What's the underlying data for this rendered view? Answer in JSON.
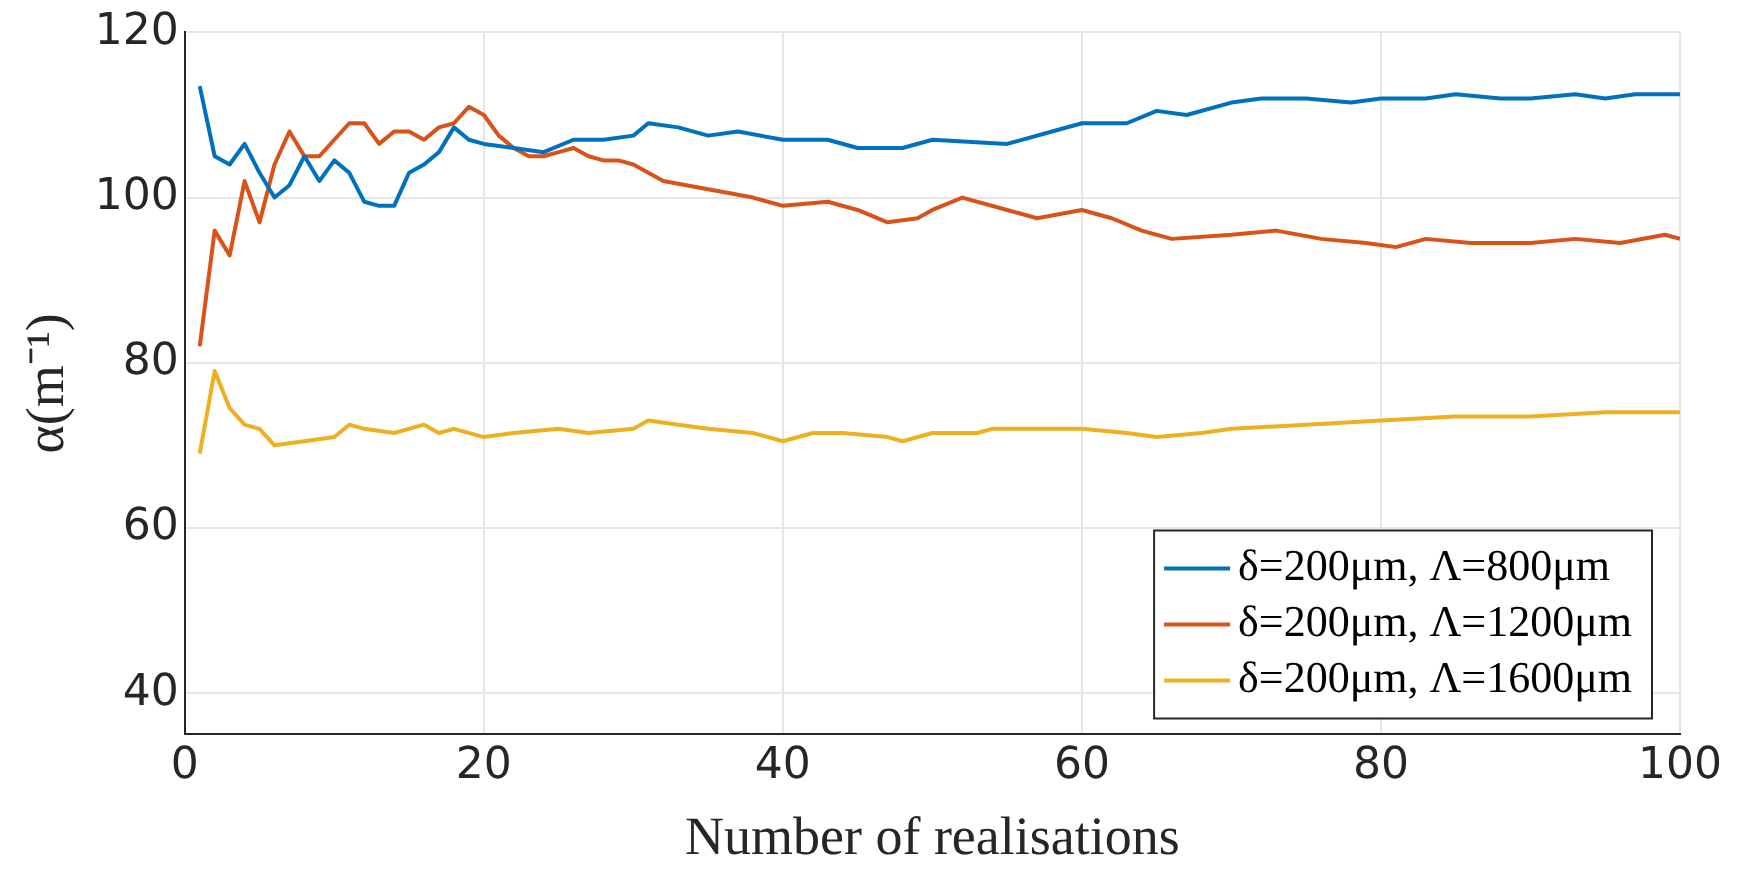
{
  "chart_data": {
    "type": "line",
    "xlabel": "Number of realisations",
    "ylabel": "α(m⁻¹)",
    "xlim": [
      0,
      100
    ],
    "xticks": [
      0,
      20,
      40,
      60,
      80,
      100
    ],
    "ylim": [
      35,
      120
    ],
    "yticks": [
      40,
      60,
      80,
      100,
      120
    ],
    "grid": true,
    "legend": "bottom right",
    "marker": "none",
    "line_style": "solid",
    "series": [
      {
        "name": "δ=200μm, Λ=800μm",
        "color": "#0072bd",
        "x": [
          1,
          2,
          3,
          4,
          5,
          6,
          7,
          8,
          9,
          10,
          11,
          12,
          13,
          14,
          15,
          16,
          17,
          18,
          19,
          20,
          22,
          24,
          26,
          28,
          30,
          31,
          33,
          35,
          37,
          40,
          43,
          45,
          48,
          50,
          55,
          58,
          60,
          63,
          65,
          67,
          70,
          72,
          75,
          78,
          80,
          83,
          85,
          88,
          90,
          93,
          95,
          97,
          100
        ],
        "values": [
          113.5,
          105,
          104,
          106.5,
          103,
          100,
          101.5,
          105,
          102,
          104.5,
          103,
          99.5,
          99,
          99,
          103,
          104,
          105.5,
          108.5,
          107,
          106.5,
          106,
          105.5,
          107,
          107,
          107.5,
          109,
          108.5,
          107.5,
          108,
          107,
          107,
          106,
          106,
          107,
          106.5,
          108,
          109,
          109,
          110.5,
          110,
          111.5,
          112,
          112,
          111.5,
          112,
          112,
          112.5,
          112,
          112,
          112.5,
          112,
          112.5,
          112.5
        ]
      },
      {
        "name": "δ=200μm, Λ=1200μm",
        "color": "#d95319",
        "x": [
          1,
          2,
          3,
          4,
          5,
          6,
          7,
          8,
          9,
          10,
          11,
          12,
          13,
          14,
          15,
          16,
          17,
          18,
          19,
          20,
          21,
          22,
          23,
          24,
          25,
          26,
          27,
          28,
          29,
          30,
          32,
          35,
          38,
          40,
          43,
          45,
          47,
          49,
          50,
          52,
          55,
          57,
          60,
          62,
          64,
          66,
          70,
          73,
          76,
          79,
          81,
          83,
          86,
          90,
          93,
          96,
          99,
          100
        ],
        "values": [
          82,
          96,
          93,
          102,
          97,
          104,
          108,
          105,
          105,
          107,
          109,
          109,
          106.5,
          108,
          108,
          107,
          108.5,
          109,
          111,
          110,
          107.5,
          106,
          105,
          105,
          105.5,
          106,
          105,
          104.5,
          104.5,
          104,
          102,
          101,
          100,
          99,
          99.5,
          98.5,
          97,
          97.5,
          98.5,
          100,
          98.5,
          97.5,
          98.5,
          97.5,
          96,
          95,
          95.5,
          96,
          95,
          94.5,
          94,
          95,
          94.5,
          94.5,
          95,
          94.5,
          95.5,
          95
        ]
      },
      {
        "name": "δ=200μm, Λ=1600μm",
        "color": "#edb120",
        "x": [
          1,
          2,
          3,
          4,
          5,
          6,
          8,
          10,
          11,
          12,
          14,
          16,
          17,
          18,
          20,
          22,
          25,
          27,
          30,
          31,
          33,
          35,
          38,
          40,
          42,
          44,
          47,
          48,
          50,
          53,
          54,
          56,
          60,
          63,
          65,
          68,
          70,
          75,
          80,
          85,
          90,
          95,
          100
        ],
        "values": [
          69,
          79,
          74.5,
          72.5,
          72,
          70,
          70.5,
          71,
          72.5,
          72,
          71.5,
          72.5,
          71.5,
          72,
          71,
          71.5,
          72,
          71.5,
          72,
          73,
          72.5,
          72,
          71.5,
          70.5,
          71.5,
          71.5,
          71,
          70.5,
          71.5,
          71.5,
          72,
          72,
          72,
          71.5,
          71,
          71.5,
          72,
          72.5,
          73,
          73.5,
          73.5,
          74,
          74
        ]
      }
    ]
  }
}
